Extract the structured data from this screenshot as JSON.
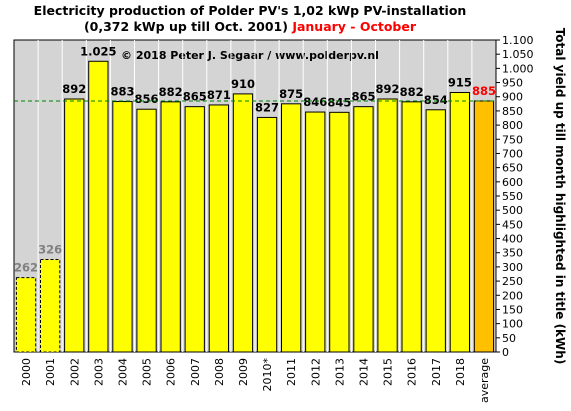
{
  "chart_data": {
    "type": "bar",
    "title": "Electricity production  of Polder PV's 1,02 kWp PV-installation",
    "subtitle": "(0,372 kWp up till Oct. 2001)",
    "subtitle_highlight": "January - October",
    "annotation": "© 2018 Peter J. Segaar / www.polderpv.nl",
    "y_label": "Total yield up till month highlighted in title (kWh)",
    "categories": [
      "2000",
      "2001",
      "2002",
      "2003",
      "2004",
      "2005",
      "2006",
      "2007",
      "2008",
      "2009",
      "2010*",
      "2011",
      "2012",
      "2013",
      "2014",
      "2015",
      "2016",
      "2017",
      "2018",
      "average"
    ],
    "values": [
      262,
      326,
      892,
      1025,
      883,
      856,
      882,
      865,
      871,
      910,
      827,
      875,
      846,
      845,
      865,
      892,
      882,
      854,
      915,
      885
    ],
    "value_labels": [
      "262",
      "326",
      "892",
      "1.025",
      "883",
      "856",
      "882",
      "865",
      "871",
      "910",
      "827",
      "875",
      "846",
      "845",
      "865",
      "892",
      "882",
      "854",
      "915",
      "885"
    ],
    "colors": [
      "#ffff00",
      "#ffff00",
      "#ffff00",
      "#ffff00",
      "#ffff00",
      "#ffff00",
      "#ffff00",
      "#ffff00",
      "#ffff00",
      "#ffff00",
      "#ffff00",
      "#ffff00",
      "#ffff00",
      "#ffff00",
      "#ffff00",
      "#ffff00",
      "#ffff00",
      "#ffff00",
      "#ffff00",
      "#ffc000"
    ],
    "label_colors": [
      "#808080",
      "#808080",
      "#000000",
      "#000000",
      "#000000",
      "#000000",
      "#000000",
      "#000000",
      "#000000",
      "#000000",
      "#000000",
      "#000000",
      "#000000",
      "#000000",
      "#000000",
      "#000000",
      "#000000",
      "#000000",
      "#000000",
      "#ff0000"
    ],
    "dashed": [
      true,
      true,
      false,
      false,
      false,
      false,
      false,
      false,
      false,
      false,
      false,
      false,
      false,
      false,
      false,
      false,
      false,
      false,
      false,
      false
    ],
    "ylim": [
      0,
      1100
    ],
    "yticks": [
      0,
      50,
      100,
      150,
      200,
      250,
      300,
      350,
      400,
      450,
      500,
      550,
      600,
      650,
      700,
      750,
      800,
      850,
      900,
      950,
      {
        "value": 1000,
        "label": "1.000"
      },
      {
        "value": 1050,
        "label": "1.050"
      },
      {
        "value": 1100,
        "label": "1.100"
      }
    ],
    "reference_line_color": "#008000"
  }
}
